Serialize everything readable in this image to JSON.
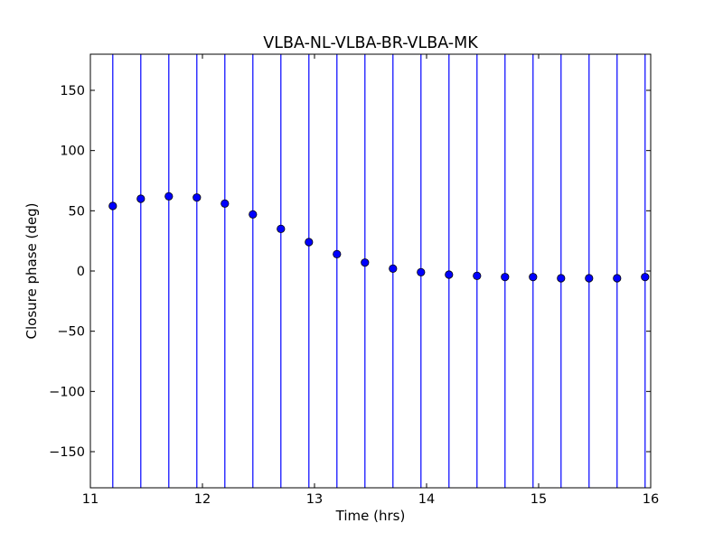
{
  "chart_data": {
    "type": "scatter",
    "title": "VLBA-NL-VLBA-BR-VLBA-MK",
    "xlabel": "Time (hrs)",
    "ylabel": "Closure phase (deg)",
    "xlim": [
      11,
      16
    ],
    "ylim": [
      -180,
      180
    ],
    "xticks": [
      11,
      12,
      13,
      14,
      15,
      16
    ],
    "xtick_labels": [
      "11",
      "12",
      "13",
      "14",
      "15",
      "16"
    ],
    "yticks": [
      150,
      100,
      50,
      0,
      -50,
      -100,
      -150
    ],
    "ytick_labels": [
      "150",
      "100",
      "50",
      "0",
      "−50",
      "−100",
      "−150"
    ],
    "grid": false,
    "legend": "none",
    "marker_color": "#0000ff",
    "errorbar_color": "#0000ff",
    "series": [
      {
        "x": [
          11.2,
          11.45,
          11.7,
          11.95,
          12.2,
          12.45,
          12.7,
          12.95,
          13.2,
          13.45,
          13.7,
          13.95,
          14.2,
          14.45,
          14.7,
          14.95,
          15.2,
          15.45,
          15.7,
          15.95
        ],
        "y": [
          54,
          60,
          62,
          61,
          56,
          47,
          35,
          24,
          14,
          7,
          2,
          -1,
          -3,
          -4,
          -5,
          -5,
          -6,
          -6,
          -6,
          -5
        ],
        "yerr_low": [
          -180,
          -180,
          -180,
          -180,
          -180,
          -180,
          -180,
          -180,
          -180,
          -180,
          -180,
          -180,
          -180,
          -180,
          -180,
          -180,
          -180,
          -180,
          -180,
          -180
        ],
        "yerr_high": [
          180,
          180,
          180,
          180,
          180,
          180,
          180,
          180,
          180,
          180,
          180,
          180,
          180,
          180,
          180,
          180,
          180,
          180,
          180,
          180
        ]
      }
    ]
  }
}
